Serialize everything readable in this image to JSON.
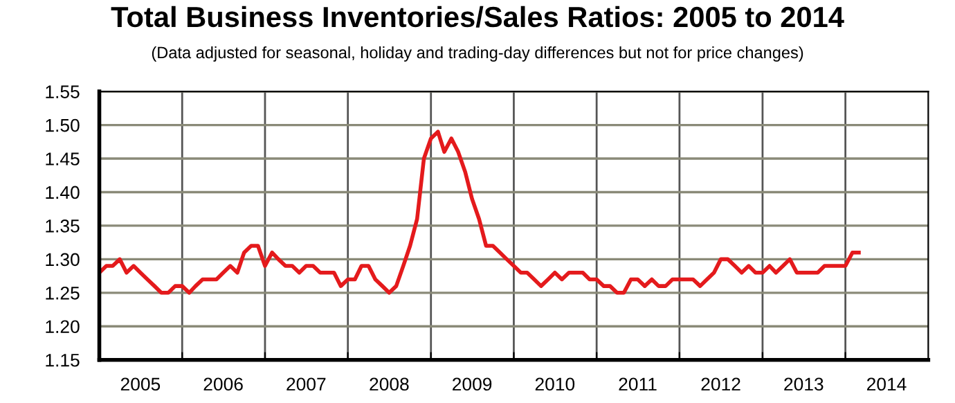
{
  "chart_data": {
    "type": "line",
    "title": "Total Business Inventories/Sales Ratios: 2005 to 2014",
    "subtitle": "(Data adjusted for seasonal, holiday and trading-day differences but not for price changes)",
    "x": [
      "2005-01",
      "2005-02",
      "2005-03",
      "2005-04",
      "2005-05",
      "2005-06",
      "2005-07",
      "2005-08",
      "2005-09",
      "2005-10",
      "2005-11",
      "2005-12",
      "2006-01",
      "2006-02",
      "2006-03",
      "2006-04",
      "2006-05",
      "2006-06",
      "2006-07",
      "2006-08",
      "2006-09",
      "2006-10",
      "2006-11",
      "2006-12",
      "2007-01",
      "2007-02",
      "2007-03",
      "2007-04",
      "2007-05",
      "2007-06",
      "2007-07",
      "2007-08",
      "2007-09",
      "2007-10",
      "2007-11",
      "2007-12",
      "2008-01",
      "2008-02",
      "2008-03",
      "2008-04",
      "2008-05",
      "2008-06",
      "2008-07",
      "2008-08",
      "2008-09",
      "2008-10",
      "2008-11",
      "2008-12",
      "2009-01",
      "2009-02",
      "2009-03",
      "2009-04",
      "2009-05",
      "2009-06",
      "2009-07",
      "2009-08",
      "2009-09",
      "2009-10",
      "2009-11",
      "2009-12",
      "2010-01",
      "2010-02",
      "2010-03",
      "2010-04",
      "2010-05",
      "2010-06",
      "2010-07",
      "2010-08",
      "2010-09",
      "2010-10",
      "2010-11",
      "2010-12",
      "2011-01",
      "2011-02",
      "2011-03",
      "2011-04",
      "2011-05",
      "2011-06",
      "2011-07",
      "2011-08",
      "2011-09",
      "2011-10",
      "2011-11",
      "2011-12",
      "2012-01",
      "2012-02",
      "2012-03",
      "2012-04",
      "2012-05",
      "2012-06",
      "2012-07",
      "2012-08",
      "2012-09",
      "2012-10",
      "2012-11",
      "2012-12",
      "2013-01",
      "2013-02",
      "2013-03",
      "2013-04",
      "2013-05",
      "2013-06",
      "2013-07",
      "2013-08",
      "2013-09",
      "2013-10",
      "2013-11",
      "2013-12",
      "2014-01",
      "2014-02",
      "2014-03"
    ],
    "series": [
      {
        "color": "#e41a1c",
        "values": [
          1.28,
          1.29,
          1.29,
          1.3,
          1.28,
          1.29,
          1.28,
          1.27,
          1.26,
          1.25,
          1.25,
          1.26,
          1.26,
          1.25,
          1.26,
          1.27,
          1.27,
          1.27,
          1.28,
          1.29,
          1.28,
          1.31,
          1.32,
          1.32,
          1.29,
          1.31,
          1.3,
          1.29,
          1.29,
          1.28,
          1.29,
          1.29,
          1.28,
          1.28,
          1.28,
          1.26,
          1.27,
          1.27,
          1.29,
          1.29,
          1.27,
          1.26,
          1.25,
          1.26,
          1.29,
          1.32,
          1.36,
          1.45,
          1.48,
          1.49,
          1.46,
          1.48,
          1.46,
          1.43,
          1.39,
          1.36,
          1.32,
          1.32,
          1.31,
          1.3,
          1.29,
          1.28,
          1.28,
          1.27,
          1.26,
          1.27,
          1.28,
          1.27,
          1.28,
          1.28,
          1.28,
          1.27,
          1.27,
          1.26,
          1.26,
          1.25,
          1.25,
          1.27,
          1.27,
          1.26,
          1.27,
          1.26,
          1.26,
          1.27,
          1.27,
          1.27,
          1.27,
          1.26,
          1.27,
          1.28,
          1.3,
          1.3,
          1.29,
          1.28,
          1.29,
          1.28,
          1.28,
          1.29,
          1.28,
          1.29,
          1.3,
          1.28,
          1.28,
          1.28,
          1.28,
          1.29,
          1.29,
          1.29,
          1.29,
          1.31,
          1.31
        ]
      }
    ],
    "xlim": [
      "2005-01",
      "2015-01"
    ],
    "xticks": [
      {
        "value": "2005-07",
        "label": "2005"
      },
      {
        "value": "2006-01",
        "label": null
      },
      {
        "value": "2006-07",
        "label": "2006"
      },
      {
        "value": "2007-01",
        "label": null
      },
      {
        "value": "2007-07",
        "label": "2007"
      },
      {
        "value": "2008-01",
        "label": null
      },
      {
        "value": "2008-07",
        "label": "2008"
      },
      {
        "value": "2009-01",
        "label": null
      },
      {
        "value": "2009-07",
        "label": "2009"
      },
      {
        "value": "2010-01",
        "label": null
      },
      {
        "value": "2010-07",
        "label": "2010"
      },
      {
        "value": "2011-01",
        "label": null
      },
      {
        "value": "2011-07",
        "label": "2011"
      },
      {
        "value": "2012-01",
        "label": null
      },
      {
        "value": "2012-07",
        "label": "2012"
      },
      {
        "value": "2013-01",
        "label": null
      },
      {
        "value": "2013-07",
        "label": "2013"
      },
      {
        "value": "2014-01",
        "label": null
      },
      {
        "value": "2014-07",
        "label": "2014"
      }
    ],
    "ylim": [
      1.15,
      1.55
    ],
    "yticks": [
      {
        "value": 1.15,
        "label": "1.15"
      },
      {
        "value": 1.2,
        "label": "1.20"
      },
      {
        "value": 1.25,
        "label": "1.25"
      },
      {
        "value": 1.3,
        "label": "1.30"
      },
      {
        "value": 1.35,
        "label": "1.35"
      },
      {
        "value": 1.4,
        "label": "1.40"
      },
      {
        "value": 1.45,
        "label": "1.45"
      },
      {
        "value": 1.5,
        "label": "1.50"
      },
      {
        "value": 1.55,
        "label": "1.55"
      }
    ],
    "grid": true,
    "marker": "none",
    "line_style": "solid"
  }
}
